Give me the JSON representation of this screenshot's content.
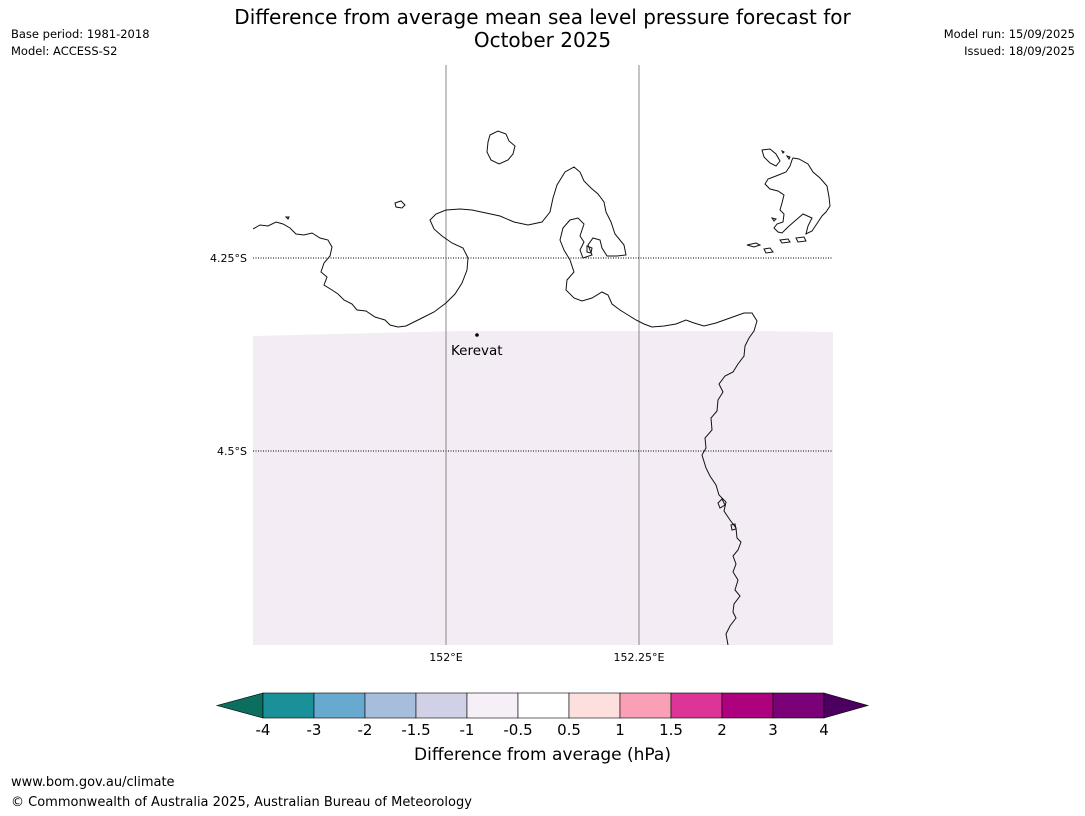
{
  "header": {
    "title_line1": "Difference from average mean sea level pressure forecast for",
    "title_line2": "October 2025",
    "base_period": "Base period: 1981-2018",
    "model": "Model: ACCESS-S2",
    "model_run": "Model run: 15/09/2025",
    "issued": "Issued: 18/09/2025"
  },
  "map": {
    "place_label": "Kerevat",
    "lat_labels": [
      "4.25°S",
      "4.5°S"
    ],
    "lon_labels": [
      "152°E",
      "152.25°E"
    ],
    "shaded_category": "-1 to -0.5",
    "shade_color": "#f3ecf5"
  },
  "colorbar": {
    "title": "Difference from average (hPa)",
    "ticks": [
      "-4",
      "-3",
      "-2",
      "-1.5",
      "-1",
      "-0.5",
      "0.5",
      "1",
      "1.5",
      "2",
      "3",
      "4"
    ],
    "under_color": "#0b6e5f",
    "over_color": "#4b0060",
    "colors": [
      "#1a9098",
      "#67a9cf",
      "#a6bddb",
      "#d0d1e6",
      "#f6eff7",
      "#ffffff",
      "#fde0dd",
      "#fa9fb5",
      "#dd3497",
      "#ae017e",
      "#7a0177"
    ]
  },
  "footer": {
    "url": "www.bom.gov.au/climate",
    "copyright": "© Commonwealth of Australia 2025, Australian Bureau of Meteorology"
  }
}
